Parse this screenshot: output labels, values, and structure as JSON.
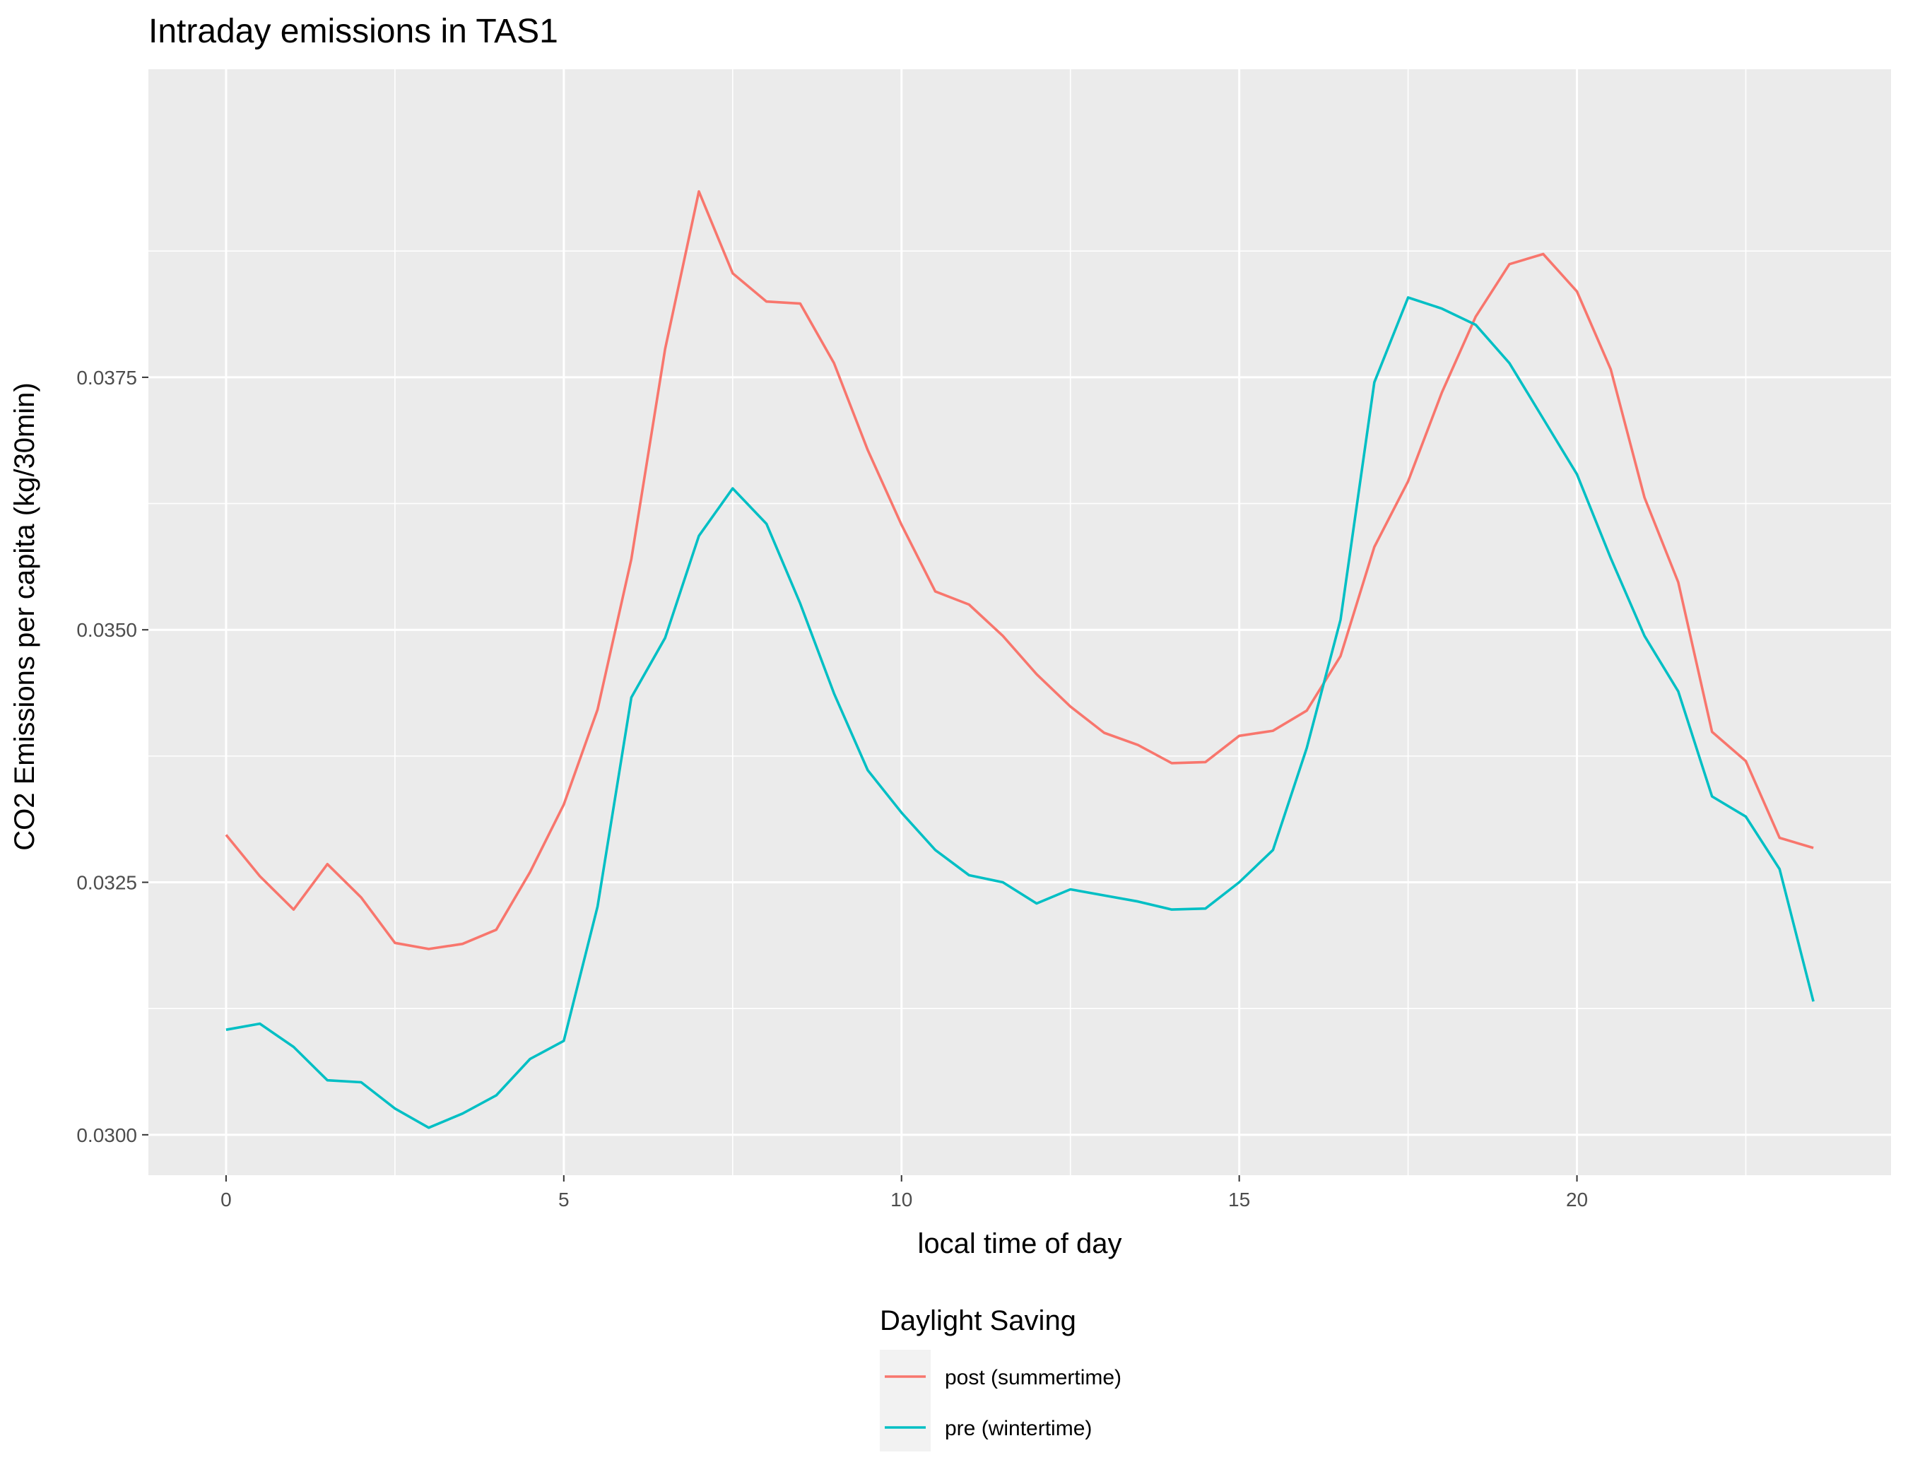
{
  "chart_data": {
    "type": "line",
    "title": "Intraday emissions in TAS1",
    "xlabel": "local time of day",
    "ylabel": "CO2 Emissions per capita (kg/30min)",
    "xlim": [
      -1.15,
      24.65
    ],
    "ylim": [
      0.0296,
      0.04055
    ],
    "x_ticks": [
      0,
      5,
      10,
      15,
      20
    ],
    "x_tick_labels": [
      "0",
      "5",
      "10",
      "15",
      "20"
    ],
    "y_ticks": [
      0.03,
      0.0325,
      0.035,
      0.0375
    ],
    "y_tick_labels": [
      "0.0300",
      "0.0325",
      "0.0350",
      "0.0375"
    ],
    "grid": true,
    "legend": {
      "title": "Daylight Saving",
      "position": "bottom"
    },
    "x": [
      0,
      0.5,
      1,
      1.5,
      2,
      2.5,
      3,
      3.5,
      4,
      4.5,
      5,
      5.5,
      6,
      6.5,
      7,
      7.5,
      8,
      8.5,
      9,
      9.5,
      10,
      10.5,
      11,
      11.5,
      12,
      12.5,
      13,
      13.5,
      14,
      14.5,
      15,
      15.5,
      16,
      16.5,
      17,
      17.5,
      18,
      18.5,
      19,
      19.5,
      20,
      20.5,
      21,
      21.5,
      22,
      22.5,
      23,
      23.5
    ],
    "series": [
      {
        "name": "post (summertime)",
        "color": "#F8766D",
        "values": [
          0.03297,
          0.03256,
          0.03223,
          0.03268,
          0.03235,
          0.0319,
          0.03184,
          0.03189,
          0.03203,
          0.0326,
          0.03327,
          0.03421,
          0.0357,
          0.03778,
          0.03934,
          0.03853,
          0.03825,
          0.03823,
          0.03764,
          0.03678,
          0.03604,
          0.03538,
          0.03525,
          0.03494,
          0.03456,
          0.03424,
          0.03398,
          0.03386,
          0.03368,
          0.03369,
          0.03395,
          0.034,
          0.0342,
          0.03474,
          0.03582,
          0.03647,
          0.03735,
          0.0381,
          0.03862,
          0.03872,
          0.03835,
          0.03758,
          0.03631,
          0.03547,
          0.03399,
          0.0337,
          0.03294,
          0.03284
        ]
      },
      {
        "name": "pre (wintertime)",
        "color": "#00BFC4",
        "values": [
          0.03104,
          0.0311,
          0.03087,
          0.03054,
          0.03052,
          0.03026,
          0.03007,
          0.03021,
          0.03039,
          0.03075,
          0.03093,
          0.03226,
          0.03433,
          0.03492,
          0.03593,
          0.0364,
          0.03605,
          0.03526,
          0.03437,
          0.03361,
          0.03319,
          0.03282,
          0.03257,
          0.0325,
          0.03229,
          0.03243,
          0.03237,
          0.03231,
          0.03223,
          0.03224,
          0.0325,
          0.03282,
          0.03383,
          0.0351,
          0.03745,
          0.03829,
          0.03818,
          0.03802,
          0.03764,
          0.03709,
          0.03654,
          0.03571,
          0.03494,
          0.03439,
          0.03335,
          0.03315,
          0.03263,
          0.03132
        ]
      }
    ]
  }
}
